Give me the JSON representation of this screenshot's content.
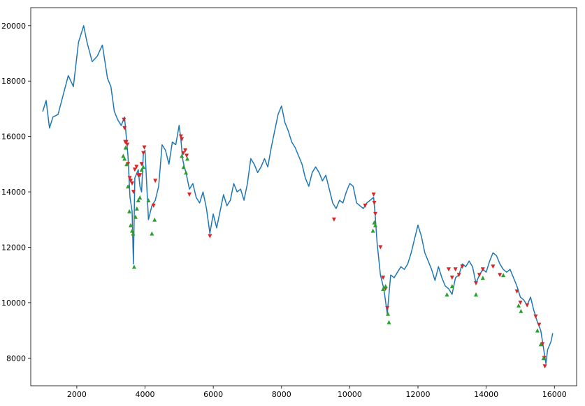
{
  "colors": {
    "series": "#1f77b4",
    "sell_marker": "#d62728",
    "buy_marker": "#2ca02c",
    "axis": "#000000",
    "background": "#ffffff"
  },
  "chart_data": {
    "type": "line",
    "title": "",
    "xlabel": "",
    "ylabel": "",
    "xlim": [
      650,
      16650
    ],
    "ylim": [
      7000,
      20650
    ],
    "grid": false,
    "legend": "none",
    "x_ticks": [
      2000,
      4000,
      6000,
      8000,
      10000,
      12000,
      14000,
      16000
    ],
    "y_ticks": [
      8000,
      10000,
      12000,
      14000,
      16000,
      18000,
      20000
    ],
    "series": [
      {
        "kind": "line",
        "x": [
          1000,
          1100,
          1200,
          1300,
          1450,
          1600,
          1750,
          1900,
          2050,
          2200,
          2300,
          2450,
          2600,
          2750,
          2900,
          3000,
          3100,
          3200,
          3300,
          3400,
          3500,
          3560,
          3620,
          3660,
          3700,
          3800,
          3850,
          3900,
          3950,
          4000,
          4100,
          4200,
          4300,
          4400,
          4500,
          4600,
          4700,
          4800,
          4900,
          5000,
          5050,
          5100,
          5150,
          5200,
          5300,
          5400,
          5500,
          5600,
          5700,
          5800,
          5900,
          6000,
          6100,
          6200,
          6300,
          6400,
          6500,
          6600,
          6700,
          6800,
          6900,
          7000,
          7100,
          7200,
          7300,
          7400,
          7500,
          7600,
          7700,
          7800,
          7900,
          8000,
          8100,
          8200,
          8300,
          8400,
          8500,
          8600,
          8700,
          8800,
          8900,
          9000,
          9100,
          9200,
          9300,
          9400,
          9500,
          9600,
          9700,
          9800,
          9900,
          10000,
          10100,
          10200,
          10300,
          10400,
          10500,
          10600,
          10700,
          10750,
          10800,
          10900,
          11000,
          11100,
          11150,
          11200,
          11300,
          11400,
          11500,
          11600,
          11700,
          11800,
          11900,
          12000,
          12100,
          12200,
          12300,
          12400,
          12500,
          12600,
          12700,
          12800,
          12900,
          13000,
          13100,
          13200,
          13300,
          13400,
          13500,
          13600,
          13700,
          13800,
          13900,
          14000,
          14100,
          14200,
          14300,
          14400,
          14500,
          14600,
          14700,
          14800,
          14900,
          15000,
          15100,
          15200,
          15300,
          15400,
          15500,
          15600,
          15650,
          15700,
          15750,
          15800,
          15900,
          15950
        ],
        "y": [
          16900,
          17300,
          16300,
          16700,
          16800,
          17500,
          18200,
          17800,
          19400,
          20000,
          19400,
          18700,
          18900,
          19300,
          18100,
          17800,
          16900,
          16600,
          16400,
          16700,
          15300,
          13800,
          13300,
          11400,
          14500,
          14800,
          14200,
          14000,
          15400,
          15500,
          13000,
          13500,
          13700,
          14200,
          15700,
          15500,
          15000,
          15800,
          15700,
          16400,
          15900,
          15200,
          14900,
          14700,
          14100,
          14300,
          13800,
          13600,
          14000,
          13400,
          12500,
          13200,
          12700,
          13300,
          13900,
          13500,
          13700,
          14300,
          14000,
          14100,
          13700,
          14300,
          15200,
          15000,
          14700,
          14900,
          15200,
          14900,
          15600,
          16200,
          16800,
          17100,
          16500,
          16200,
          15800,
          15600,
          15300,
          15000,
          14500,
          14200,
          14700,
          14900,
          14700,
          14400,
          14600,
          14100,
          13600,
          13400,
          13700,
          13600,
          14000,
          14300,
          14200,
          13600,
          13500,
          13400,
          13600,
          13700,
          13800,
          13100,
          12200,
          11000,
          10500,
          9600,
          10300,
          11000,
          10900,
          11100,
          11300,
          11200,
          11400,
          11800,
          12300,
          12800,
          12400,
          11800,
          11500,
          11200,
          10800,
          11300,
          10900,
          10600,
          10500,
          10300,
          10900,
          11000,
          11400,
          11300,
          11500,
          11300,
          10700,
          11000,
          11200,
          11100,
          11500,
          11800,
          11700,
          11400,
          11200,
          11100,
          11200,
          10900,
          10600,
          10200,
          10100,
          9900,
          10200,
          9700,
          9300,
          9000,
          8600,
          8200,
          7800,
          8300,
          8600,
          8900
        ]
      },
      {
        "kind": "sell-markers",
        "x": [
          3380,
          3400,
          3420,
          3450,
          3480,
          3500,
          3550,
          3580,
          3620,
          3660,
          3700,
          3750,
          3800,
          3850,
          3900,
          3950,
          3980,
          4250,
          4300,
          5050,
          5080,
          5120,
          5180,
          5220,
          5300,
          5900,
          9540,
          10450,
          10700,
          10720,
          10750,
          10900,
          10980,
          11050,
          11100,
          12900,
          13000,
          13100,
          13200,
          13300,
          13700,
          13800,
          13900,
          14200,
          14400,
          14900,
          15000,
          15200,
          15450,
          15550,
          15650,
          15700,
          15720
        ],
        "y": [
          16600,
          16300,
          15800,
          15800,
          15700,
          15000,
          14500,
          14400,
          14300,
          14000,
          14800,
          14900,
          14600,
          14600,
          15000,
          15400,
          15600,
          13500,
          14400,
          16000,
          15900,
          15400,
          15500,
          15300,
          13900,
          12400,
          13000,
          13500,
          13900,
          13600,
          13200,
          12000,
          10900,
          10500,
          9800,
          11200,
          10900,
          11200,
          11000,
          11300,
          10700,
          11000,
          11200,
          11300,
          11000,
          10400,
          10000,
          9900,
          9500,
          9200,
          8500,
          8000,
          7700
        ]
      },
      {
        "kind": "buy-markers",
        "x": [
          3360,
          3400,
          3430,
          3460,
          3500,
          3540,
          3580,
          3620,
          3650,
          3680,
          3720,
          3760,
          3800,
          3850,
          3900,
          3950,
          4100,
          4200,
          4280,
          5080,
          5130,
          5200,
          5240,
          10680,
          10720,
          10750,
          10980,
          11050,
          11120,
          11150,
          12850,
          13000,
          13700,
          13900,
          14500,
          14950,
          15020,
          15500,
          15600,
          15680
        ],
        "y": [
          15300,
          15200,
          15600,
          15000,
          14200,
          13300,
          12800,
          12600,
          12500,
          11300,
          13100,
          13400,
          13700,
          13800,
          14800,
          14900,
          13700,
          12500,
          13000,
          15300,
          14900,
          14700,
          15200,
          12600,
          12900,
          12800,
          10500,
          10600,
          9600,
          9300,
          10300,
          10600,
          10300,
          10900,
          11000,
          9900,
          9700,
          9000,
          8500,
          8000
        ]
      }
    ]
  }
}
